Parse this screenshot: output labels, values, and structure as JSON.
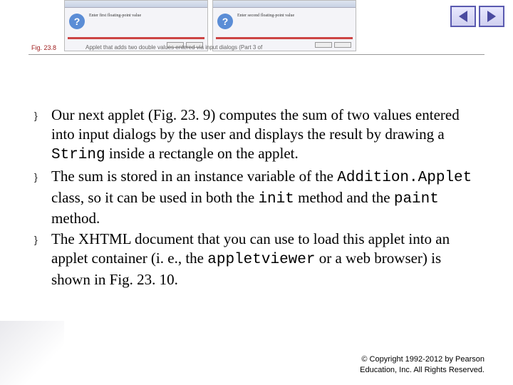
{
  "nav": {
    "back_title": "Back",
    "forward_title": "Forward"
  },
  "header": {
    "fig_label": "Fig. 23.8",
    "fig_desc": "Applet that adds two double values entered via input dialogs (Part 3 of",
    "dialog_icon": "?",
    "dialog1_text": "Enter first floating-point value",
    "dialog2_text": "Enter second floating-point value"
  },
  "bullets": [
    {
      "segments": [
        {
          "t": "Our next applet (Fig. 23. 9) computes the sum of two values entered into input dialogs by the user and displays the result by drawing a "
        },
        {
          "t": "String",
          "code": true
        },
        {
          "t": " inside a rectangle on the applet."
        }
      ]
    },
    {
      "segments": [
        {
          "t": "The sum is stored in an instance variable of the "
        },
        {
          "t": "Addition.Applet",
          "code": true
        },
        {
          "t": " class, so it can be used in both the "
        },
        {
          "t": "init",
          "code": true
        },
        {
          "t": " method and the "
        },
        {
          "t": "paint",
          "code": true
        },
        {
          "t": " method."
        }
      ]
    },
    {
      "segments": [
        {
          "t": "The XHTML document that you can use to load this applet into an applet container (i. e., the "
        },
        {
          "t": "appletviewer",
          "code": true
        },
        {
          "t": " or a web browser) is shown in Fig. 23. 10."
        }
      ]
    }
  ],
  "footer": {
    "line1": "© Copyright 1992-2012 by Pearson",
    "line2": "Education, Inc. All Rights Reserved."
  }
}
